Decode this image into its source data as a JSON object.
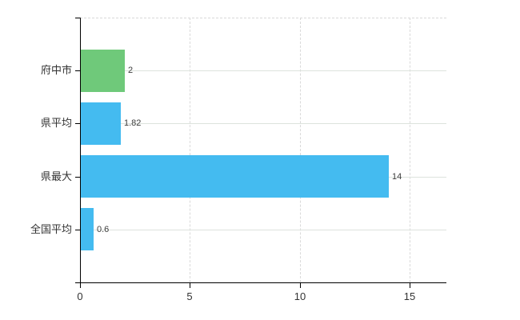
{
  "chart_data": {
    "type": "bar",
    "orientation": "horizontal",
    "title": "",
    "xlabel": "",
    "ylabel": "",
    "categories": [
      "府中市",
      "県平均",
      "県最大",
      "全国平均"
    ],
    "values": [
      2,
      1.82,
      14,
      0.6
    ],
    "value_labels": [
      "2",
      "1.82",
      "14",
      "0.6"
    ],
    "bar_colors": [
      "#6fc97a",
      "#44bbf0",
      "#44bbf0",
      "#44bbf0"
    ],
    "x_tick_labels": [
      "0",
      "5",
      "10",
      "15"
    ],
    "x_tick_values": [
      0,
      5,
      10,
      15
    ],
    "xlim": [
      0,
      16.67
    ],
    "grid": {
      "horizontal_lines": "solid at each category center",
      "vertical_lines": "dashed at each x tick except 0",
      "top_border": "dashed"
    },
    "legend": "none"
  },
  "colors": {
    "background": "#ffffff",
    "bar_green": "#6fc97a",
    "bar_blue": "#44bbf0",
    "grid_horizontal": "#dde3dd",
    "grid_dashed": "#d9d9d9",
    "axis": "#000000",
    "category_text": "#333333",
    "value_text": "#3d3d3d",
    "tick_text": "#333333"
  }
}
